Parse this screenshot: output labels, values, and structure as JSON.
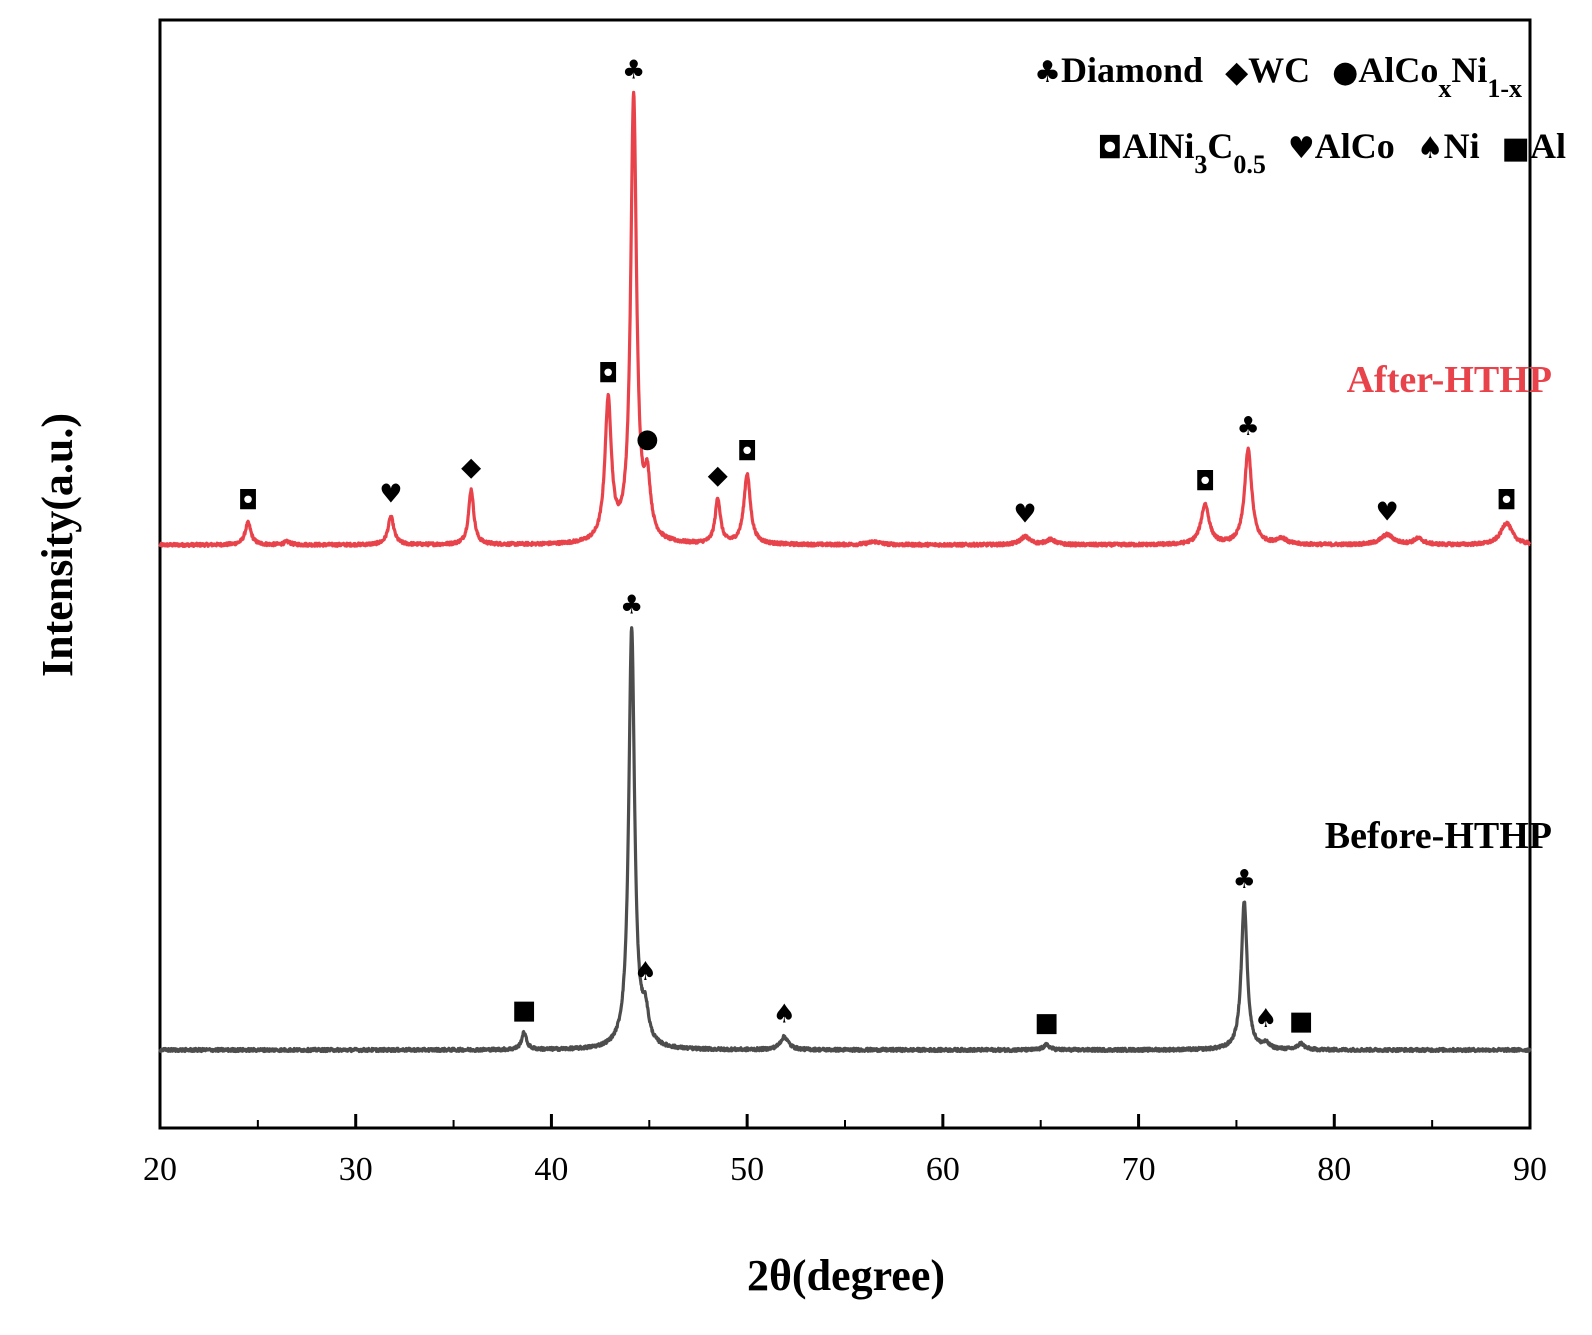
{
  "chart_data": {
    "type": "line",
    "xlabel": "2θ(degree)",
    "ylabel": "Intensity(a.u.)",
    "xlim": [
      20,
      90
    ],
    "xticks": [
      20,
      30,
      40,
      50,
      60,
      70,
      80,
      90
    ],
    "yticks_shown": false,
    "legend": {
      "row1": [
        {
          "symbol": "♣",
          "parts": [
            {
              "t": "Diamond"
            }
          ]
        },
        {
          "symbol": "◆",
          "parts": [
            {
              "t": "WC"
            }
          ]
        },
        {
          "symbol": "●",
          "parts": [
            {
              "t": "AlCo"
            },
            {
              "t": "x",
              "sub": true
            },
            {
              "t": "Ni"
            },
            {
              "t": "1-x",
              "sub": true
            }
          ]
        }
      ],
      "row2": [
        {
          "symbol": "◘",
          "parts": [
            {
              "t": "AlNi"
            },
            {
              "t": "3",
              "sub": true
            },
            {
              "t": "C"
            },
            {
              "t": "0.5",
              "sub": true
            }
          ]
        },
        {
          "symbol": "♥",
          "parts": [
            {
              "t": "AlCo"
            }
          ]
        },
        {
          "symbol": "♠",
          "parts": [
            {
              "t": "Ni"
            }
          ]
        },
        {
          "symbol": "■",
          "parts": [
            {
              "t": "Al"
            }
          ]
        }
      ]
    },
    "series": [
      {
        "name": "After-HTHP",
        "color": "#e8434a",
        "baseline": 100,
        "peaks": [
          {
            "x": 24.5,
            "h": 22,
            "w": 0.18,
            "marker": "◘"
          },
          {
            "x": 26.5,
            "h": 3,
            "w": 0.2
          },
          {
            "x": 31.8,
            "h": 28,
            "w": 0.18,
            "marker": "♥"
          },
          {
            "x": 35.9,
            "h": 55,
            "w": 0.16,
            "marker": "◆"
          },
          {
            "x": 42.9,
            "h": 140,
            "w": 0.2,
            "marker": "◘"
          },
          {
            "x": 44.2,
            "h": 445,
            "w": 0.18,
            "marker": "♣"
          },
          {
            "x": 44.9,
            "h": 55,
            "w": 0.2,
            "marker": "●"
          },
          {
            "x": 48.5,
            "h": 45,
            "w": 0.16,
            "marker": "◆"
          },
          {
            "x": 50.0,
            "h": 70,
            "w": 0.2,
            "marker": "◘"
          },
          {
            "x": 56.5,
            "h": 3,
            "w": 0.4
          },
          {
            "x": 64.2,
            "h": 8,
            "w": 0.3,
            "marker": "♥"
          },
          {
            "x": 65.5,
            "h": 5,
            "w": 0.3
          },
          {
            "x": 73.4,
            "h": 40,
            "w": 0.25,
            "marker": "◘"
          },
          {
            "x": 75.6,
            "h": 95,
            "w": 0.22,
            "marker": "♣"
          },
          {
            "x": 77.3,
            "h": 6,
            "w": 0.3
          },
          {
            "x": 82.7,
            "h": 10,
            "w": 0.4,
            "marker": "♥"
          },
          {
            "x": 84.3,
            "h": 6,
            "w": 0.3
          },
          {
            "x": 88.8,
            "h": 22,
            "w": 0.35,
            "marker": "◘"
          }
        ]
      },
      {
        "name": "Before-HTHP",
        "color": "#4d4d4d",
        "baseline": 0,
        "peaks": [
          {
            "x": 38.6,
            "h": 17,
            "w": 0.15,
            "marker": "■"
          },
          {
            "x": 44.1,
            "h": 420,
            "w": 0.18,
            "marker": "♣"
          },
          {
            "x": 44.8,
            "h": 30,
            "w": 0.2,
            "marker": "♠"
          },
          {
            "x": 51.9,
            "h": 13,
            "w": 0.25,
            "marker": "♠"
          },
          {
            "x": 65.3,
            "h": 5,
            "w": 0.2,
            "marker": "■"
          },
          {
            "x": 75.4,
            "h": 148,
            "w": 0.18,
            "marker": "♣"
          },
          {
            "x": 76.5,
            "h": 5,
            "w": 0.2,
            "marker": "♠"
          },
          {
            "x": 78.3,
            "h": 6,
            "w": 0.2,
            "marker": "■"
          }
        ]
      }
    ]
  }
}
